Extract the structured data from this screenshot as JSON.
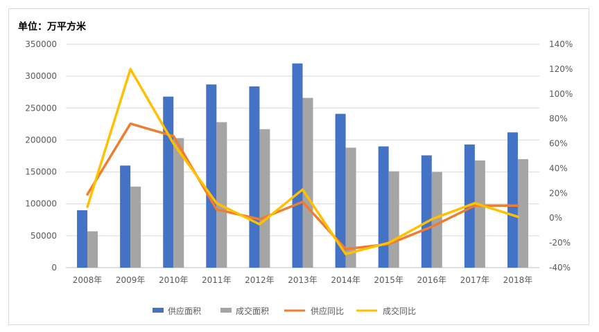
{
  "unit_label": "单位：万平方米",
  "colors": {
    "supply_area": "#4472C4",
    "deal_area": "#A5A5A5",
    "supply_yoy": "#ED7D31",
    "deal_yoy": "#FFC000",
    "grid": "#D9D9D9"
  },
  "chart_data": {
    "type": "bar",
    "title": "",
    "xlabel": "",
    "ylabel": "",
    "categories": [
      "2008年",
      "2009年",
      "2010年",
      "2011年",
      "2012年",
      "2013年",
      "2014年",
      "2015年",
      "2016年",
      "2017年",
      "2018年"
    ],
    "ylim": [
      0,
      350000
    ],
    "y_ticks": [
      "0",
      "50000",
      "100000",
      "150000",
      "200000",
      "250000",
      "300000",
      "350000"
    ],
    "y2lim": [
      -0.4,
      1.4
    ],
    "y2_ticks": [
      "-40%",
      "-20%",
      "0%",
      "20%",
      "40%",
      "60%",
      "80%",
      "100%",
      "120%",
      "140%"
    ],
    "grid": true,
    "legend_position": "bottom",
    "series": [
      {
        "name": "供应面积",
        "kind": "bar",
        "axis": "left",
        "values": [
          90000,
          160000,
          268000,
          287000,
          284000,
          320000,
          241000,
          190000,
          176000,
          193000,
          212000
        ]
      },
      {
        "name": "成交面积",
        "kind": "bar",
        "axis": "left",
        "values": [
          57000,
          127000,
          203000,
          228000,
          217000,
          266000,
          188000,
          151000,
          150000,
          168000,
          170000
        ]
      },
      {
        "name": "供应同比",
        "kind": "line",
        "axis": "right",
        "values": [
          0.19,
          0.76,
          0.66,
          0.07,
          -0.01,
          0.13,
          -0.25,
          -0.21,
          -0.07,
          0.1,
          0.1
        ]
      },
      {
        "name": "成交同比",
        "kind": "line",
        "axis": "right",
        "values": [
          0.09,
          1.2,
          0.6,
          0.12,
          -0.05,
          0.23,
          -0.29,
          -0.2,
          -0.01,
          0.12,
          0.01
        ]
      }
    ]
  }
}
